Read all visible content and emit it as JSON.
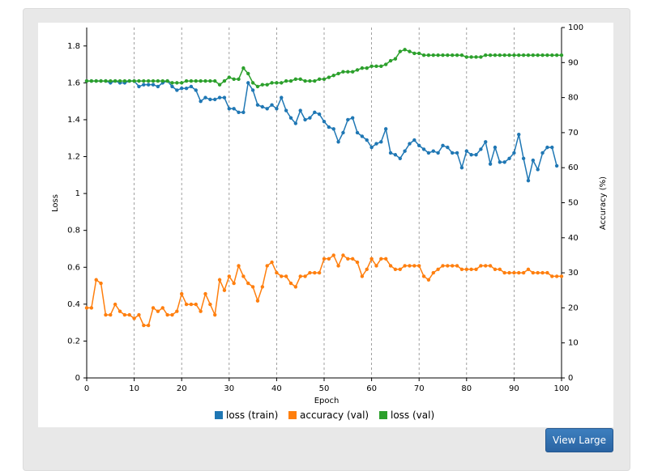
{
  "view_large_label": "View Large",
  "chart_data": {
    "type": "line",
    "xlabel": "Epoch",
    "ylabel_left": "Loss",
    "ylabel_right": "Accuracy (%)",
    "xlim": [
      0,
      100
    ],
    "ylim_left": [
      0,
      1.9
    ],
    "ylim_right": [
      0,
      100
    ],
    "x_ticks": [
      "0",
      "10",
      "20",
      "30",
      "40",
      "50",
      "60",
      "70",
      "80",
      "90",
      "100"
    ],
    "y_left_ticks": [
      "0",
      "0.2",
      "0.4",
      "0.6",
      "0.8",
      "1",
      "1.2",
      "1.4",
      "1.6",
      "1.8"
    ],
    "y_right_ticks": [
      "0",
      "10",
      "20",
      "30",
      "40",
      "50",
      "60",
      "70",
      "80",
      "90",
      "100"
    ],
    "vertical_grid": true,
    "legend_position": "bottom",
    "colors": {
      "loss_train": "#1f77b4",
      "accuracy_val": "#ff7f0e",
      "loss_val": "#2ca02c"
    },
    "series": [
      {
        "name": "loss (train)",
        "axis": "left",
        "x": [
          0,
          1,
          2,
          3,
          4,
          5,
          6,
          7,
          8,
          9,
          10,
          11,
          12,
          13,
          14,
          15,
          16,
          17,
          18,
          19,
          20,
          21,
          22,
          23,
          24,
          25,
          26,
          27,
          28,
          29,
          30,
          31,
          32,
          33,
          34,
          35,
          36,
          37,
          38,
          39,
          40,
          41,
          42,
          43,
          44,
          45,
          46,
          47,
          48,
          49,
          50,
          51,
          52,
          53,
          54,
          55,
          56,
          57,
          58,
          59,
          60,
          61,
          62,
          63,
          64,
          65,
          66,
          67,
          68,
          69,
          70,
          71,
          72,
          73,
          74,
          75,
          76,
          77,
          78,
          79,
          80,
          81,
          82,
          83,
          84,
          85,
          86,
          87,
          88,
          89,
          90,
          91,
          92,
          93,
          94,
          95,
          96,
          97,
          98,
          99
        ],
        "values": [
          1.61,
          1.61,
          1.61,
          1.61,
          1.61,
          1.6,
          1.61,
          1.6,
          1.6,
          1.61,
          1.61,
          1.58,
          1.59,
          1.59,
          1.59,
          1.58,
          1.6,
          1.61,
          1.58,
          1.56,
          1.57,
          1.57,
          1.58,
          1.56,
          1.5,
          1.52,
          1.51,
          1.51,
          1.52,
          1.52,
          1.46,
          1.46,
          1.44,
          1.44,
          1.6,
          1.56,
          1.48,
          1.47,
          1.46,
          1.48,
          1.46,
          1.52,
          1.45,
          1.41,
          1.38,
          1.45,
          1.4,
          1.41,
          1.44,
          1.43,
          1.39,
          1.36,
          1.35,
          1.28,
          1.33,
          1.4,
          1.41,
          1.33,
          1.31,
          1.29,
          1.25,
          1.27,
          1.28,
          1.35,
          1.22,
          1.21,
          1.19,
          1.23,
          1.27,
          1.29,
          1.26,
          1.24,
          1.22,
          1.23,
          1.22,
          1.26,
          1.25,
          1.22,
          1.22,
          1.14,
          1.23,
          1.21,
          1.21,
          1.24,
          1.28,
          1.16,
          1.25,
          1.17,
          1.17,
          1.19,
          1.22,
          1.32,
          1.19,
          1.07,
          1.18,
          1.13,
          1.22,
          1.25,
          1.25,
          1.15
        ]
      },
      {
        "name": "accuracy (val)",
        "axis": "right",
        "x": [
          0,
          1,
          2,
          3,
          4,
          5,
          6,
          7,
          8,
          9,
          10,
          11,
          12,
          13,
          14,
          15,
          16,
          17,
          18,
          19,
          20,
          21,
          22,
          23,
          24,
          25,
          26,
          27,
          28,
          29,
          30,
          31,
          32,
          33,
          34,
          35,
          36,
          37,
          38,
          39,
          40,
          41,
          42,
          43,
          44,
          45,
          46,
          47,
          48,
          49,
          50,
          51,
          52,
          53,
          54,
          55,
          56,
          57,
          58,
          59,
          60,
          61,
          62,
          63,
          64,
          65,
          66,
          67,
          68,
          69,
          70,
          71,
          72,
          73,
          74,
          75,
          76,
          77,
          78,
          79,
          80,
          81,
          82,
          83,
          84,
          85,
          86,
          87,
          88,
          89,
          90,
          91,
          92,
          93,
          94,
          95,
          96,
          97,
          98,
          99,
          100
        ],
        "values": [
          20,
          20,
          28,
          27,
          18,
          18,
          21,
          19,
          18,
          18,
          17,
          18,
          15,
          15,
          20,
          19,
          20,
          18,
          18,
          19,
          24,
          21,
          21,
          21,
          19,
          24,
          21,
          18,
          28,
          25,
          29,
          27,
          32,
          29,
          27,
          26,
          22,
          26,
          32,
          33,
          30,
          29,
          29,
          27,
          26,
          29,
          29,
          30,
          30,
          30,
          34,
          34,
          35,
          32,
          35,
          34,
          34,
          33,
          29,
          31,
          34,
          32,
          34,
          34,
          32,
          31,
          31,
          32,
          32,
          32,
          32,
          29,
          28,
          30,
          31,
          32,
          32,
          32,
          32,
          31,
          31,
          31,
          31,
          32,
          32,
          32,
          31,
          31,
          30,
          30,
          30,
          30,
          30,
          31,
          30,
          30,
          30,
          30,
          29,
          29,
          29
        ]
      },
      {
        "name": "loss (val)",
        "axis": "left",
        "x": [
          0,
          1,
          2,
          3,
          4,
          5,
          6,
          7,
          8,
          9,
          10,
          11,
          12,
          13,
          14,
          15,
          16,
          17,
          18,
          19,
          20,
          21,
          22,
          23,
          24,
          25,
          26,
          27,
          28,
          29,
          30,
          31,
          32,
          33,
          34,
          35,
          36,
          37,
          38,
          39,
          40,
          41,
          42,
          43,
          44,
          45,
          46,
          47,
          48,
          49,
          50,
          51,
          52,
          53,
          54,
          55,
          56,
          57,
          58,
          59,
          60,
          61,
          62,
          63,
          64,
          65,
          66,
          67,
          68,
          69,
          70,
          71,
          72,
          73,
          74,
          75,
          76,
          77,
          78,
          79,
          80,
          81,
          82,
          83,
          84,
          85,
          86,
          87,
          88,
          89,
          90,
          91,
          92,
          93,
          94,
          95,
          96,
          97,
          98,
          99,
          100
        ],
        "values": [
          1.61,
          1.61,
          1.61,
          1.61,
          1.61,
          1.61,
          1.61,
          1.61,
          1.61,
          1.61,
          1.61,
          1.61,
          1.61,
          1.61,
          1.61,
          1.61,
          1.61,
          1.61,
          1.6,
          1.6,
          1.6,
          1.61,
          1.61,
          1.61,
          1.61,
          1.61,
          1.61,
          1.61,
          1.59,
          1.61,
          1.63,
          1.62,
          1.62,
          1.68,
          1.65,
          1.6,
          1.58,
          1.59,
          1.59,
          1.6,
          1.6,
          1.6,
          1.61,
          1.61,
          1.62,
          1.62,
          1.61,
          1.61,
          1.61,
          1.62,
          1.62,
          1.63,
          1.64,
          1.65,
          1.66,
          1.66,
          1.66,
          1.67,
          1.68,
          1.68,
          1.69,
          1.69,
          1.69,
          1.7,
          1.72,
          1.73,
          1.77,
          1.78,
          1.77,
          1.76,
          1.76,
          1.75,
          1.75,
          1.75,
          1.75,
          1.75,
          1.75,
          1.75,
          1.75,
          1.75,
          1.74,
          1.74,
          1.74,
          1.74,
          1.75,
          1.75,
          1.75,
          1.75,
          1.75,
          1.75,
          1.75,
          1.75,
          1.75,
          1.75,
          1.75,
          1.75,
          1.75,
          1.75,
          1.75,
          1.75,
          1.75
        ]
      }
    ]
  }
}
